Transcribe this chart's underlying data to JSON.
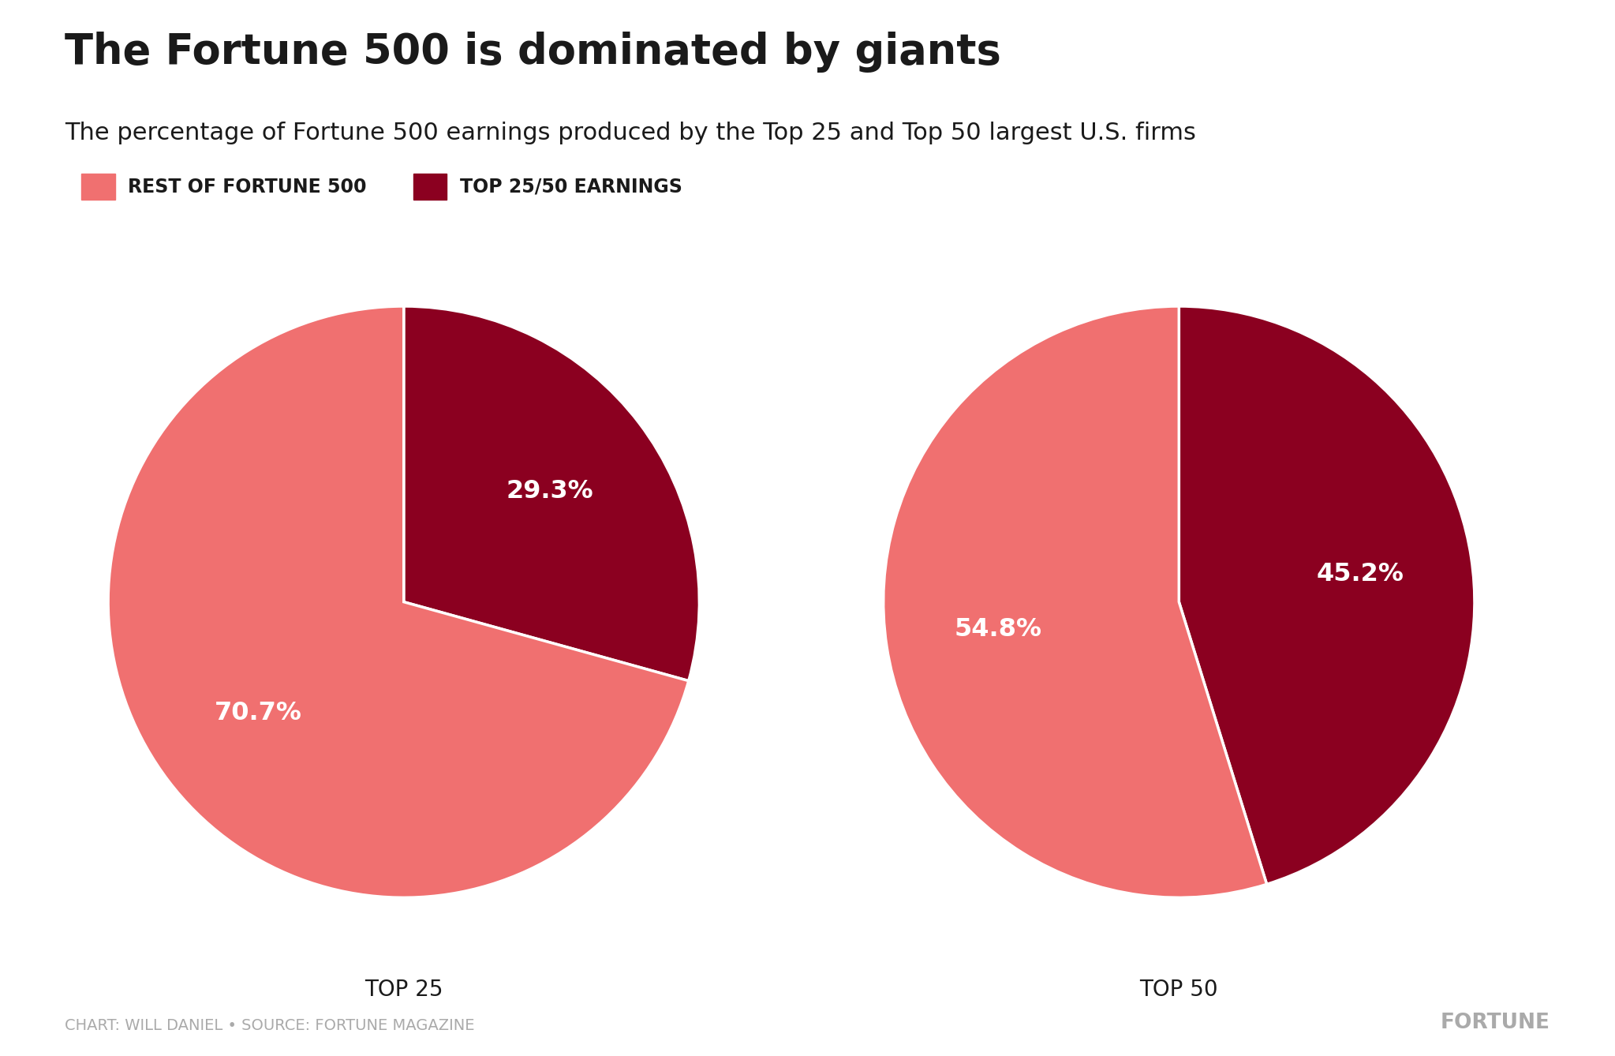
{
  "title": "The Fortune 500 is dominated by giants",
  "subtitle": "The percentage of Fortune 500 earnings produced by the Top 25 and Top 50 largest U.S. firms",
  "legend_labels": [
    "REST OF FORTUNE 500",
    "TOP 25/50 EARNINGS"
  ],
  "color_rest": "#F07070",
  "color_top": "#8B0020",
  "pie1_values": [
    70.7,
    29.3
  ],
  "pie2_values": [
    54.8,
    45.2
  ],
  "pie1_labels": [
    "70.7%",
    "29.3%"
  ],
  "pie2_labels": [
    "54.8%",
    "45.2%"
  ],
  "pie1_title": "TOP 25",
  "pie2_title": "TOP 50",
  "footnote": "CHART: WILL DANIEL • SOURCE: FORTUNE MAGAZINE",
  "fortune_label": "FORTUNE",
  "bg_color": "#FFFFFF",
  "text_color": "#1a1a1a",
  "label_fontsize": 20,
  "title_fontsize": 38,
  "subtitle_fontsize": 22,
  "legend_fontsize": 17,
  "footnote_fontsize": 14,
  "pie_label_fontsize": 23,
  "pie1_startangle": 90,
  "pie2_startangle": 90
}
